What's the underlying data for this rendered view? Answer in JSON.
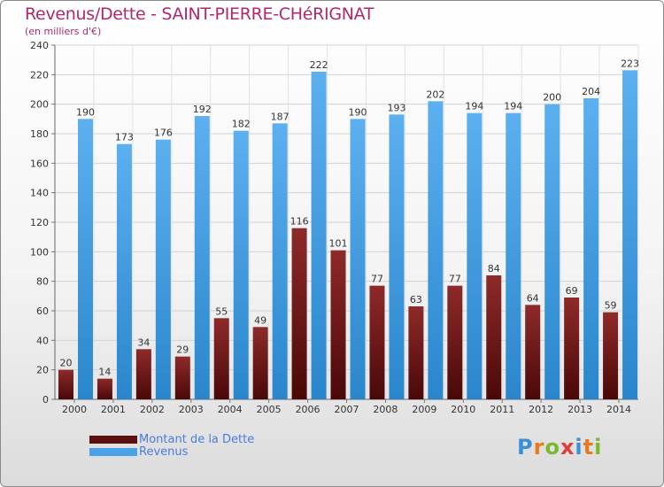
{
  "header": {
    "title": "Revenus/Dette - SAINT-PIERRE-CHéRIGNAT",
    "subtitle": "(en milliers d'€)"
  },
  "chart_data": {
    "type": "bar",
    "categories": [
      "2000",
      "2001",
      "2002",
      "2003",
      "2004",
      "2005",
      "2006",
      "2007",
      "2008",
      "2009",
      "2010",
      "2011",
      "2012",
      "2013",
      "2014"
    ],
    "series": [
      {
        "name": "Montant de la Dette",
        "color": "#7a1818",
        "values": [
          20,
          14,
          34,
          29,
          55,
          49,
          116,
          101,
          77,
          63,
          77,
          84,
          64,
          69,
          59
        ]
      },
      {
        "name": "Revenus",
        "color": "#4aa3e8",
        "values": [
          190,
          173,
          176,
          192,
          182,
          187,
          222,
          190,
          193,
          202,
          194,
          194,
          200,
          204,
          223
        ]
      }
    ],
    "ylim": [
      0,
      240
    ],
    "yticks": [
      0,
      20,
      40,
      60,
      80,
      100,
      120,
      140,
      160,
      180,
      200,
      220,
      240
    ],
    "grid": true,
    "legend": "bottom-left"
  },
  "legend": {
    "items": [
      {
        "label": "Montant de la Dette",
        "color": "#5c0f0f"
      },
      {
        "label": "Revenus",
        "color": "#4aa3e8"
      }
    ]
  },
  "logo": {
    "letters": [
      "P",
      "r",
      "o",
      "x",
      "i",
      "t",
      "i"
    ],
    "colors": [
      "#3a8fd8",
      "#e87a1e",
      "#7ab82e",
      "#e23c3c",
      "#3a8fd8",
      "#e87a1e",
      "#7ab82e"
    ]
  }
}
